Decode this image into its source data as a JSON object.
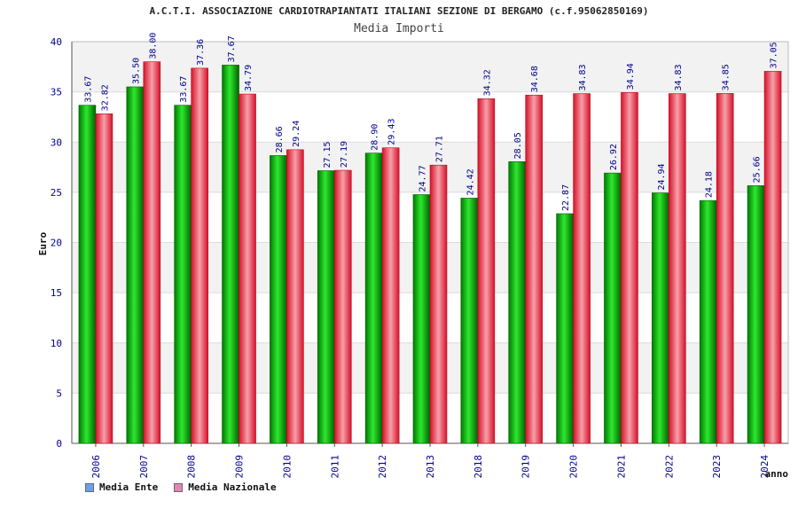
{
  "title": "A.C.T.I. ASSOCIAZIONE CARDIOTRAPIANTATI ITALIANI SEZIONE DI BERGAMO (c.f.95062850169)",
  "subtitle": "Media Importi",
  "colors": {
    "ente": "#15b515",
    "nazionale": "#e8323e",
    "ente_legend": "#6aa2e8",
    "nazionale_legend": "#e088b0",
    "axis_text": "#00008b",
    "band": "#f2f2f2"
  },
  "chart_data": {
    "type": "bar",
    "title": "Media Importi",
    "xlabel": "anno",
    "ylabel": "Euro",
    "ylim": [
      0,
      40
    ],
    "yticks": [
      0,
      5,
      10,
      15,
      20,
      25,
      30,
      35,
      40
    ],
    "grid": true,
    "legend_placement": "bottom-left",
    "categories": [
      "2006",
      "2007",
      "2008",
      "2009",
      "2010",
      "2011",
      "2012",
      "2013",
      "2018",
      "2019",
      "2020",
      "2021",
      "2022",
      "2023",
      "2024"
    ],
    "series": [
      {
        "name": "Media Ente",
        "values": [
          33.67,
          35.5,
          33.67,
          37.67,
          28.66,
          27.15,
          28.9,
          24.77,
          24.42,
          28.05,
          22.87,
          26.92,
          24.94,
          24.18,
          25.66
        ],
        "labels": [
          "33.67",
          "35.50",
          "33.67",
          "37.67",
          "28.66",
          "27.15",
          "28.90",
          "24.77",
          "24.42",
          "28.05",
          "22.87",
          "26.92",
          "24.94",
          "24.18",
          "25.66"
        ]
      },
      {
        "name": "Media Nazionale",
        "values": [
          32.82,
          38.0,
          37.36,
          34.79,
          29.24,
          27.19,
          29.43,
          27.71,
          34.32,
          34.68,
          34.83,
          34.94,
          34.83,
          34.85,
          37.05
        ],
        "labels": [
          "32.82",
          "38.00",
          "37.36",
          "34.79",
          "29.24",
          "27.19",
          "29.43",
          "27.71",
          "34.32",
          "34.68",
          "34.83",
          "34.94",
          "34.83",
          "34.85",
          "37.05"
        ]
      }
    ]
  }
}
